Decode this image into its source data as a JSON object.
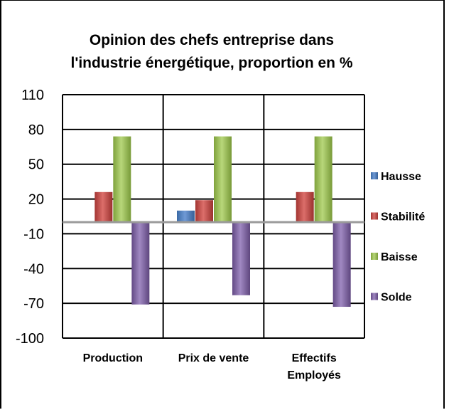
{
  "chart_data": {
    "type": "bar",
    "title": [
      "Opinion des chefs entreprise dans",
      "l'industrie énergétique, proportion en %"
    ],
    "categories": [
      [
        "Production"
      ],
      [
        "Prix de vente"
      ],
      [
        "Effectifs",
        "Employés"
      ]
    ],
    "series": [
      {
        "name": "Hausse",
        "values": [
          -1,
          10,
          0
        ],
        "color": "#4f81bd"
      },
      {
        "name": "Stabilité",
        "values": [
          26,
          19,
          26
        ],
        "color": "#c0504d"
      },
      {
        "name": "Baisse",
        "values": [
          74,
          74,
          74
        ],
        "color": "#9bbb59"
      },
      {
        "name": "Solde",
        "values": [
          -71,
          -63,
          -73
        ],
        "color": "#8064a2"
      }
    ],
    "ylim": [
      -100,
      110
    ],
    "yticks": [
      110,
      80,
      50,
      20,
      -10,
      -40,
      -70,
      -100
    ],
    "grid": true,
    "legend": "right"
  }
}
